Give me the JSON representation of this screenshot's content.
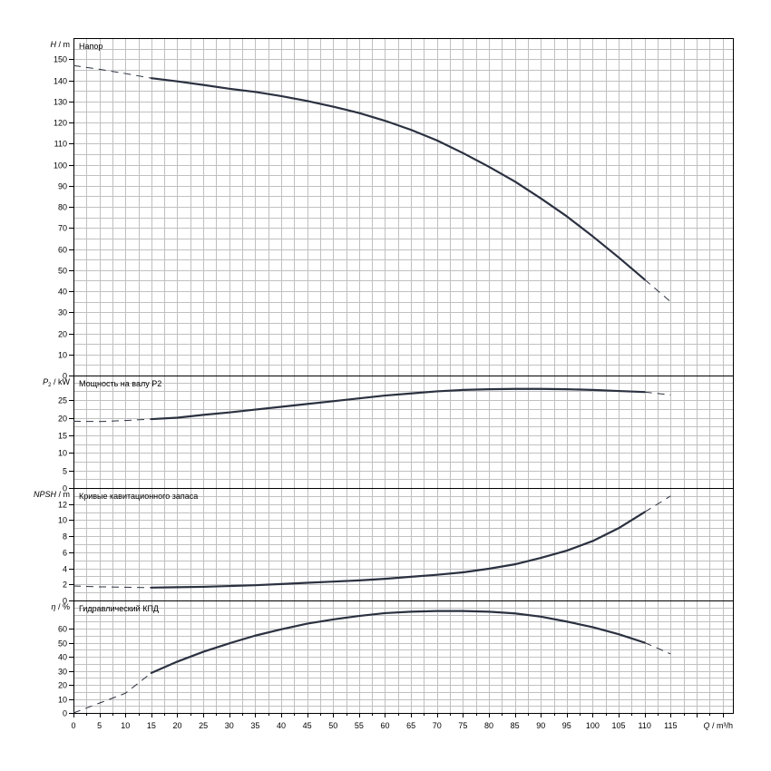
{
  "chart_data": [
    {
      "type": "line",
      "title": "Напор",
      "ylabel_italic": "H",
      "ylabel_unit": " / m",
      "ylim": [
        0,
        160
      ],
      "yticks": [
        0,
        10,
        20,
        30,
        40,
        50,
        60,
        70,
        80,
        90,
        100,
        110,
        120,
        130,
        140,
        150
      ],
      "series": [
        {
          "values_solid": [
            [
              15,
              141
            ],
            [
              20,
              139.5
            ],
            [
              25,
              137.8
            ],
            [
              30,
              136
            ],
            [
              35,
              134.5
            ],
            [
              40,
              132.5
            ],
            [
              45,
              130.2
            ],
            [
              50,
              127.5
            ],
            [
              55,
              124.5
            ],
            [
              60,
              120.8
            ],
            [
              65,
              116.5
            ],
            [
              70,
              111.5
            ],
            [
              75,
              105.5
            ],
            [
              80,
              99
            ],
            [
              85,
              92
            ],
            [
              90,
              84
            ],
            [
              95,
              75.5
            ],
            [
              100,
              66
            ],
            [
              105,
              56
            ],
            [
              110,
              45.5
            ]
          ],
          "values_dashed_start": [
            [
              0,
              147
            ],
            [
              5,
              145.2
            ],
            [
              10,
              143.2
            ],
            [
              15,
              141
            ]
          ],
          "values_dashed_end": [
            [
              110,
              45.5
            ],
            [
              115,
              35
            ]
          ]
        }
      ]
    },
    {
      "type": "line",
      "title": "Мощность на валу P2",
      "ylabel_italic": "P",
      "ylabel_sub": "2",
      "ylabel_unit": " / kW",
      "ylim": [
        0,
        32
      ],
      "yticks": [
        0,
        5,
        10,
        15,
        20,
        25
      ],
      "series": [
        {
          "values_solid": [
            [
              15,
              19.6
            ],
            [
              20,
              20
            ],
            [
              25,
              20.8
            ],
            [
              30,
              21.5
            ],
            [
              35,
              22.3
            ],
            [
              40,
              23.1
            ],
            [
              45,
              23.9
            ],
            [
              50,
              24.7
            ],
            [
              55,
              25.5
            ],
            [
              60,
              26.3
            ],
            [
              65,
              26.9
            ],
            [
              70,
              27.5
            ],
            [
              75,
              27.9
            ],
            [
              80,
              28.1
            ],
            [
              85,
              28.2
            ],
            [
              90,
              28.2
            ],
            [
              95,
              28.1
            ],
            [
              100,
              27.9
            ],
            [
              105,
              27.6
            ],
            [
              110,
              27.3
            ]
          ],
          "values_dashed_start": [
            [
              0,
              19
            ],
            [
              5,
              18.9
            ],
            [
              10,
              19.2
            ],
            [
              15,
              19.6
            ]
          ],
          "values_dashed_end": [
            [
              110,
              27.3
            ],
            [
              115,
              26.5
            ]
          ]
        }
      ]
    },
    {
      "type": "line",
      "title": "Кривые кавитационного запаса",
      "ylabel_italic": "NPSH",
      "ylabel_unit": " / m",
      "ylim": [
        0,
        14
      ],
      "yticks": [
        0,
        2,
        4,
        6,
        8,
        10,
        12
      ],
      "series": [
        {
          "values_solid": [
            [
              15,
              1.6
            ],
            [
              20,
              1.65
            ],
            [
              25,
              1.7
            ],
            [
              30,
              1.8
            ],
            [
              35,
              1.9
            ],
            [
              40,
              2.05
            ],
            [
              45,
              2.2
            ],
            [
              50,
              2.35
            ],
            [
              55,
              2.5
            ],
            [
              60,
              2.7
            ],
            [
              65,
              2.95
            ],
            [
              70,
              3.2
            ],
            [
              75,
              3.5
            ],
            [
              80,
              3.95
            ],
            [
              85,
              4.5
            ],
            [
              90,
              5.3
            ],
            [
              95,
              6.2
            ],
            [
              100,
              7.4
            ],
            [
              105,
              9
            ],
            [
              110,
              11
            ]
          ],
          "values_dashed_start": [
            [
              0,
              1.8
            ],
            [
              5,
              1.7
            ],
            [
              10,
              1.65
            ],
            [
              15,
              1.6
            ]
          ],
          "values_dashed_end": [
            [
              110,
              11
            ],
            [
              115,
              13
            ]
          ]
        }
      ]
    },
    {
      "type": "line",
      "title": "Гидравлический КПД",
      "ylabel_italic": "η",
      "ylabel_unit": " / %",
      "ylim": [
        0,
        80
      ],
      "yticks": [
        0,
        10,
        20,
        30,
        40,
        50,
        60
      ],
      "series": [
        {
          "values_solid": [
            [
              15,
              28.5
            ],
            [
              20,
              36.5
            ],
            [
              25,
              43.5
            ],
            [
              30,
              49.5
            ],
            [
              35,
              55
            ],
            [
              40,
              59.5
            ],
            [
              45,
              63.5
            ],
            [
              50,
              66.5
            ],
            [
              55,
              69
            ],
            [
              60,
              71
            ],
            [
              65,
              72
            ],
            [
              70,
              72.5
            ],
            [
              75,
              72.5
            ],
            [
              80,
              72
            ],
            [
              85,
              70.8
            ],
            [
              90,
              68.5
            ],
            [
              95,
              65
            ],
            [
              100,
              61
            ],
            [
              105,
              56
            ],
            [
              110,
              50
            ]
          ],
          "values_dashed_start": [
            [
              0,
              0
            ],
            [
              5,
              7
            ],
            [
              10,
              14
            ],
            [
              15,
              28.5
            ]
          ],
          "values_dashed_end": [
            [
              110,
              50
            ],
            [
              115,
              42
            ]
          ]
        }
      ]
    }
  ],
  "x_axis": {
    "label_italic": "Q",
    "label_unit": " / m³/h",
    "xlim": [
      0,
      127
    ],
    "ticks": [
      0,
      5,
      10,
      15,
      20,
      25,
      30,
      35,
      40,
      45,
      50,
      55,
      60,
      65,
      70,
      75,
      80,
      85,
      90,
      95,
      100,
      105,
      110,
      115
    ]
  }
}
